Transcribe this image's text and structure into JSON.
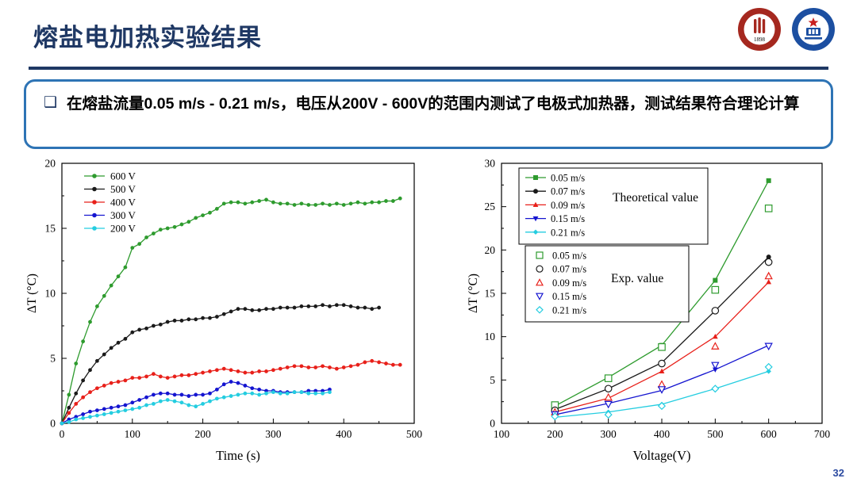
{
  "slide": {
    "title": "熔盐电加热实验结果",
    "page_number": "32",
    "bullet": {
      "marker": "❑",
      "text": "在熔盐流量0.05 m/s - 0.21 m/s，电压从200V - 600V的范围内测试了电极式加热器，测试结果符合理论计算"
    },
    "logos": [
      {
        "id": "peking-university-logo",
        "ring_color": "#a5281f",
        "year_text": "1898"
      },
      {
        "id": "hust-logo",
        "ring_color": "#1c4fa1"
      }
    ]
  },
  "chart_data": [
    {
      "type": "line",
      "title": "",
      "xlabel": "Time  (s)",
      "ylabel": "ΔT (°C)",
      "xlim": [
        0,
        500
      ],
      "ylim": [
        0,
        20
      ],
      "xticks": [
        0,
        100,
        200,
        300,
        400,
        500
      ],
      "yticks": [
        0,
        5,
        10,
        15,
        20
      ],
      "grid": false,
      "legend_position": "top-left",
      "series": [
        {
          "name": "600 V",
          "color": "#2e9b2e",
          "t0": 0,
          "dt": 10,
          "values": [
            0,
            2.2,
            4.6,
            6.3,
            7.8,
            9.0,
            9.8,
            10.6,
            11.3,
            12.0,
            13.5,
            13.8,
            14.3,
            14.6,
            14.9,
            15.0,
            15.1,
            15.3,
            15.5,
            15.8,
            16.0,
            16.2,
            16.5,
            16.9,
            17.0,
            17.0,
            16.9,
            17.0,
            17.1,
            17.2,
            17.0,
            16.9,
            16.9,
            16.8,
            16.9,
            16.8,
            16.8,
            16.9,
            16.8,
            16.9,
            16.8,
            16.9,
            17.0,
            16.9,
            17.0,
            17.0,
            17.1,
            17.1,
            17.3
          ]
        },
        {
          "name": "500 V",
          "color": "#1a1a1a",
          "t0": 0,
          "dt": 10,
          "values": [
            0,
            1.2,
            2.3,
            3.3,
            4.1,
            4.8,
            5.3,
            5.8,
            6.2,
            6.5,
            7.0,
            7.2,
            7.3,
            7.5,
            7.6,
            7.8,
            7.9,
            7.9,
            8.0,
            8.0,
            8.1,
            8.1,
            8.2,
            8.4,
            8.6,
            8.8,
            8.8,
            8.7,
            8.7,
            8.8,
            8.8,
            8.9,
            8.9,
            8.9,
            9.0,
            9.0,
            9.0,
            9.1,
            9.0,
            9.1,
            9.1,
            9.0,
            8.9,
            8.9,
            8.8,
            8.9
          ]
        },
        {
          "name": "400 V",
          "color": "#e8201a",
          "t0": 0,
          "dt": 10,
          "values": [
            0,
            0.8,
            1.5,
            2.0,
            2.4,
            2.7,
            2.9,
            3.1,
            3.2,
            3.3,
            3.5,
            3.5,
            3.6,
            3.8,
            3.6,
            3.5,
            3.6,
            3.7,
            3.7,
            3.8,
            3.9,
            4.0,
            4.1,
            4.2,
            4.1,
            4.0,
            3.9,
            3.9,
            4.0,
            4.0,
            4.1,
            4.2,
            4.3,
            4.4,
            4.4,
            4.3,
            4.3,
            4.4,
            4.3,
            4.2,
            4.3,
            4.4,
            4.5,
            4.7,
            4.8,
            4.7,
            4.6,
            4.5,
            4.5
          ]
        },
        {
          "name": "300 V",
          "color": "#1515d0",
          "t0": 0,
          "dt": 10,
          "values": [
            0,
            0.3,
            0.5,
            0.7,
            0.9,
            1.0,
            1.1,
            1.2,
            1.3,
            1.4,
            1.6,
            1.8,
            2.0,
            2.2,
            2.3,
            2.3,
            2.2,
            2.2,
            2.1,
            2.2,
            2.2,
            2.3,
            2.6,
            3.0,
            3.2,
            3.1,
            2.9,
            2.7,
            2.6,
            2.5,
            2.5,
            2.4,
            2.4,
            2.4,
            2.4,
            2.5,
            2.5,
            2.5,
            2.6
          ]
        },
        {
          "name": "200 V",
          "color": "#25cde0",
          "t0": 0,
          "dt": 10,
          "values": [
            0,
            0.1,
            0.3,
            0.4,
            0.5,
            0.6,
            0.7,
            0.8,
            0.9,
            1.0,
            1.1,
            1.2,
            1.4,
            1.5,
            1.7,
            1.8,
            1.7,
            1.6,
            1.4,
            1.3,
            1.5,
            1.7,
            1.9,
            2.0,
            2.1,
            2.2,
            2.3,
            2.3,
            2.2,
            2.3,
            2.4,
            2.3,
            2.3,
            2.4,
            2.4,
            2.3,
            2.3,
            2.3,
            2.4
          ]
        }
      ]
    },
    {
      "type": "line+scatter",
      "title": "",
      "xlabel": "Voltage(V)",
      "ylabel": "ΔT (°C)",
      "xlim": [
        100,
        700
      ],
      "ylim": [
        0,
        30
      ],
      "xticks": [
        100,
        200,
        300,
        400,
        500,
        600,
        700
      ],
      "yticks": [
        0,
        5,
        10,
        15,
        20,
        25,
        30
      ],
      "grid": false,
      "x": [
        200,
        300,
        400,
        500,
        600
      ],
      "theoretical_label": "Theoretical value",
      "exp_label": "Exp. value",
      "theoretical": [
        {
          "name": "0.05 m/s",
          "color": "#2e9b2e",
          "marker": "square",
          "values": [
            2.0,
            5.3,
            9.0,
            16.5,
            28.0
          ]
        },
        {
          "name": "0.07 m/s",
          "color": "#1a1a1a",
          "marker": "circle",
          "values": [
            1.6,
            4.0,
            7.0,
            13.0,
            19.2
          ]
        },
        {
          "name": "0.09 m/s",
          "color": "#e8201a",
          "marker": "triangle-up",
          "values": [
            1.3,
            2.9,
            6.0,
            10.0,
            16.3
          ]
        },
        {
          "name": "0.15 m/s",
          "color": "#1515d0",
          "marker": "triangle-down",
          "values": [
            1.0,
            2.3,
            3.8,
            6.2,
            9.0
          ]
        },
        {
          "name": "0.21 m/s",
          "color": "#25cde0",
          "marker": "diamond",
          "values": [
            0.7,
            1.3,
            2.2,
            4.0,
            6.0
          ]
        }
      ],
      "experimental": [
        {
          "name": "0.05 m/s",
          "color": "#2e9b2e",
          "marker": "square",
          "values": [
            2.1,
            5.2,
            8.8,
            15.4,
            24.8
          ]
        },
        {
          "name": "0.07 m/s",
          "color": "#1a1a1a",
          "marker": "circle",
          "values": [
            1.5,
            4.0,
            6.9,
            13.0,
            18.6
          ]
        },
        {
          "name": "0.09 m/s",
          "color": "#e8201a",
          "marker": "triangle-up",
          "values": [
            1.3,
            3.0,
            4.5,
            8.9,
            17.0
          ]
        },
        {
          "name": "0.15 m/s",
          "color": "#1515d0",
          "marker": "triangle-down",
          "values": [
            1.0,
            2.2,
            3.9,
            6.7,
            8.9
          ]
        },
        {
          "name": "0.21 m/s",
          "color": "#25cde0",
          "marker": "diamond",
          "values": [
            0.8,
            1.0,
            2.0,
            4.0,
            6.5
          ]
        }
      ]
    }
  ]
}
